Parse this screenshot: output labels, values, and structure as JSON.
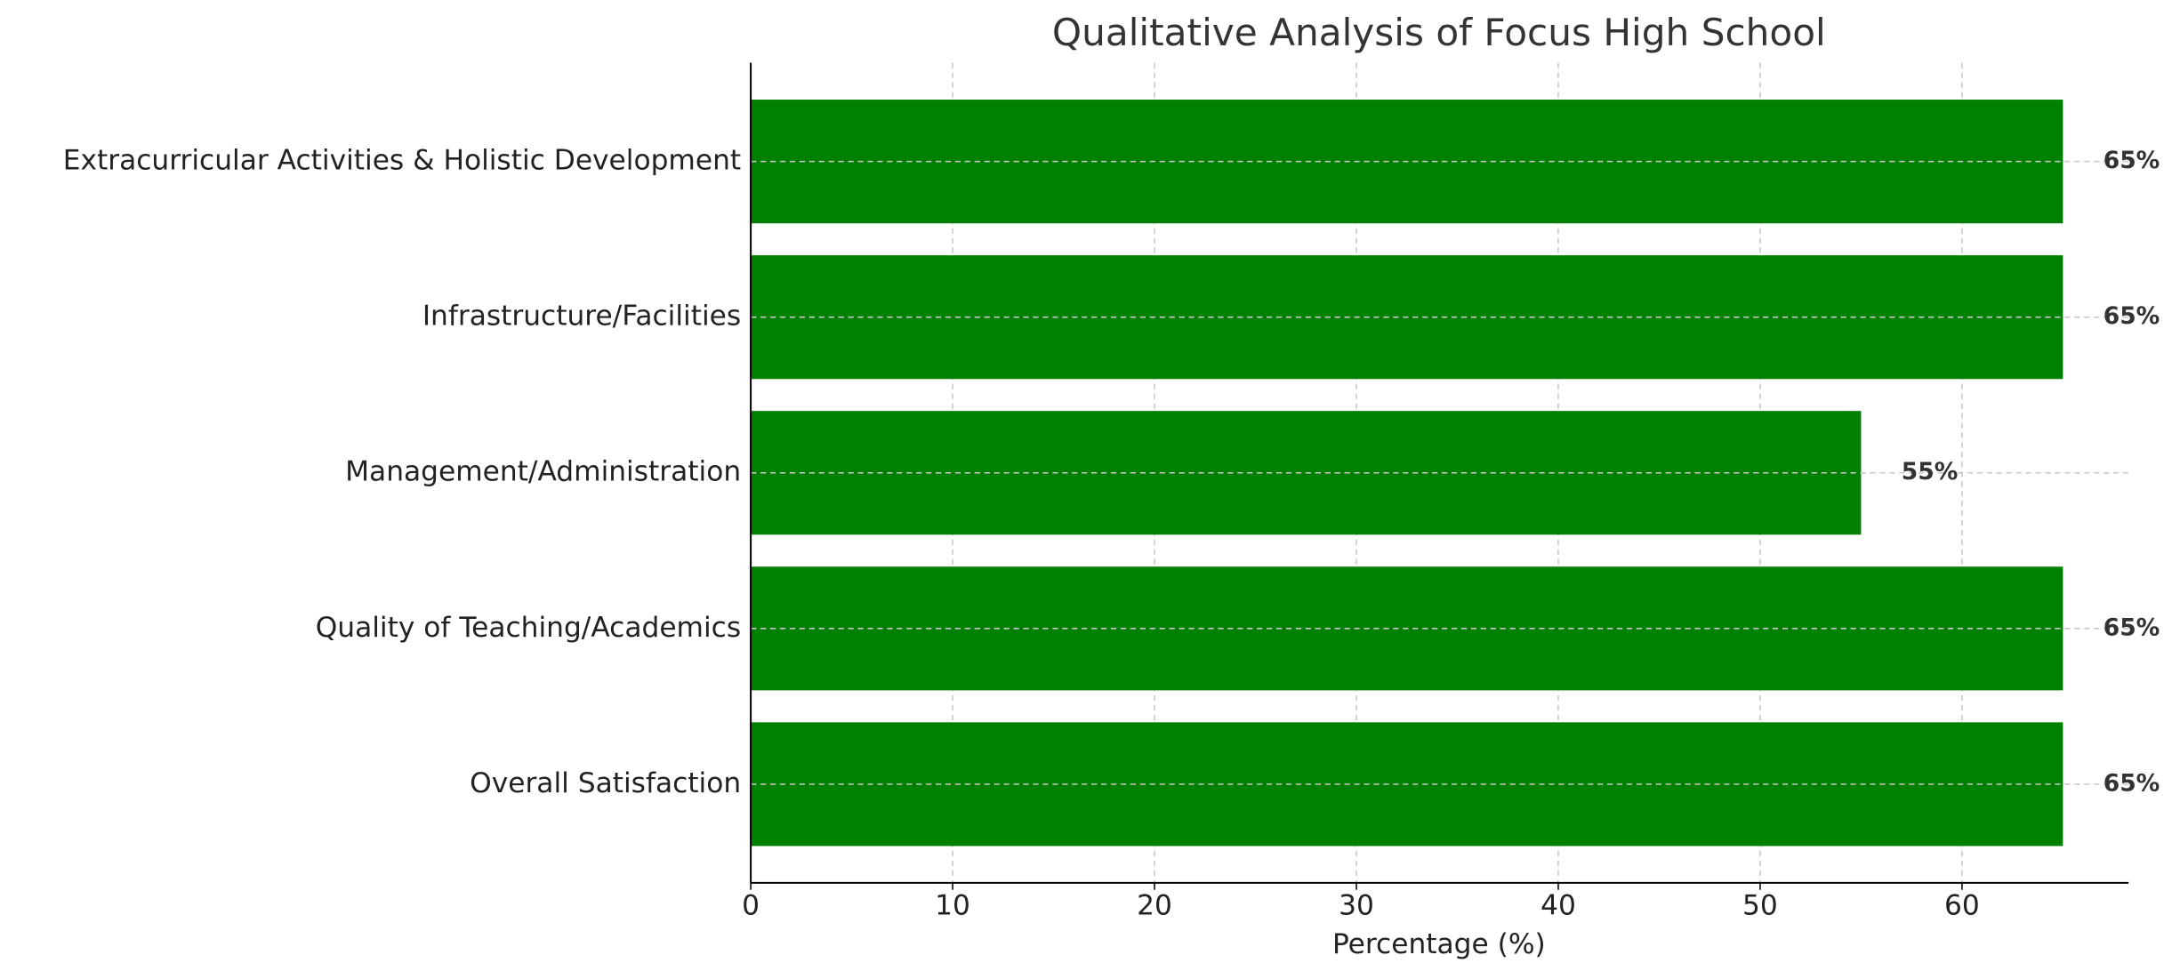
{
  "chart_data": {
    "type": "barh",
    "title": "Qualitative Analysis of Focus High School",
    "xlabel": "Percentage (%)",
    "categories": [
      "Overall Satisfaction",
      "Quality of Teaching/Academics",
      "Management/Administration",
      "Infrastructure/Facilities",
      "Extracurricular Activities & Holistic Development"
    ],
    "values": [
      65,
      65,
      55,
      65,
      65
    ],
    "value_labels": [
      "65%",
      "65%",
      "55%",
      "65%",
      "65%"
    ],
    "color": "#008000",
    "xlim": [
      0,
      68.25
    ],
    "xticks": [
      0,
      10,
      20,
      30,
      40,
      50,
      60
    ],
    "grid": true
  }
}
